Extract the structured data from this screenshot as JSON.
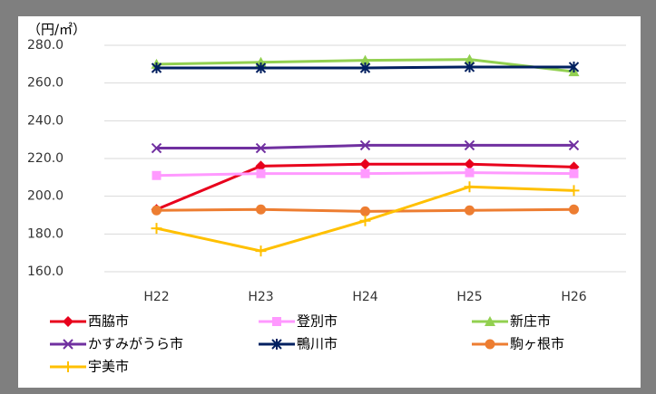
{
  "chart_data": {
    "type": "line",
    "y_label": "（円/㎡）",
    "categories": [
      "H22",
      "H23",
      "H24",
      "H25",
      "H26"
    ],
    "ylim": [
      160,
      280
    ],
    "yticks": [
      {
        "value": 160,
        "label": "160.0"
      },
      {
        "value": 180,
        "label": "180.0"
      },
      {
        "value": 200,
        "label": "200.0"
      },
      {
        "value": 220,
        "label": "220.0"
      },
      {
        "value": 240,
        "label": "240.0"
      },
      {
        "value": 260,
        "label": "260.0"
      },
      {
        "value": 280,
        "label": "280.0"
      }
    ],
    "grid": true,
    "legend": "bottom",
    "series": [
      {
        "name": "西脇市",
        "color": "#e8001c",
        "marker": "diamond",
        "values": [
          193,
          216,
          217,
          217,
          215.5
        ]
      },
      {
        "name": "登別市",
        "color": "#ff99ff",
        "marker": "square",
        "values": [
          211,
          212,
          212,
          212.5,
          212
        ]
      },
      {
        "name": "新庄市",
        "color": "#92d050",
        "marker": "triangle",
        "values": [
          270,
          271,
          272,
          272.5,
          266
        ]
      },
      {
        "name": "かすみがうら市",
        "color": "#7030a0",
        "marker": "x",
        "values": [
          225.5,
          225.5,
          227,
          227,
          227
        ]
      },
      {
        "name": "鴨川市",
        "color": "#002060",
        "marker": "star",
        "values": [
          268,
          268,
          268,
          268.5,
          268.5
        ]
      },
      {
        "name": "駒ヶ根市",
        "color": "#ed7d31",
        "marker": "circle",
        "values": [
          192.5,
          193,
          192,
          192.5,
          193
        ]
      },
      {
        "name": "宇美市",
        "color": "#ffc000",
        "marker": "plus",
        "values": [
          183,
          171,
          187,
          205,
          203
        ]
      }
    ]
  }
}
